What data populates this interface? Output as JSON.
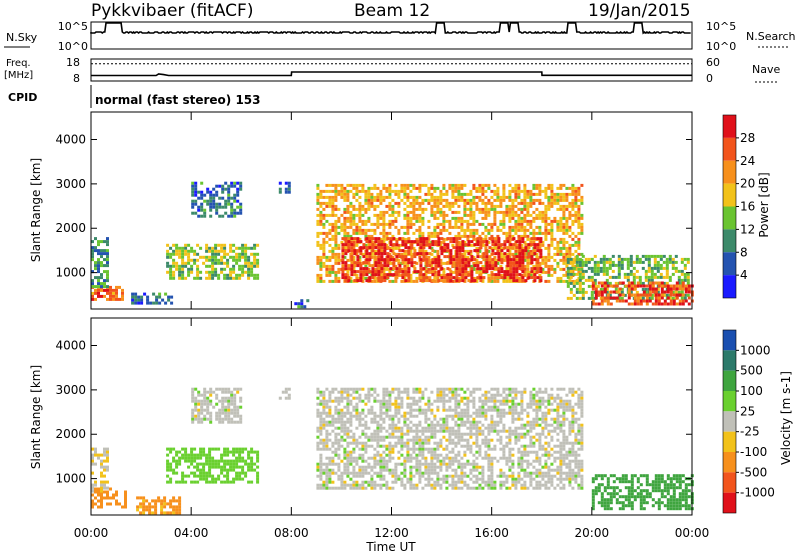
{
  "header": {
    "station": "Pykkvibaer (fitACF)",
    "beam": "Beam 12",
    "date": "19/Jan/2015"
  },
  "strip": {
    "nsky_label": "N.Sky",
    "nsearch_label": "N.Search",
    "freq_label": "Freq.",
    "freq_unit": "[MHz]",
    "nave_label": "Nave",
    "cpid_label": "CPID",
    "cpid_text": "normal (fast stereo) 153",
    "noise_ticks_left": [
      "10^5",
      "10^0"
    ],
    "noise_ticks_right": [
      "10^5",
      "10^0"
    ],
    "freq_ticks": [
      "18",
      "8"
    ],
    "nave_ticks": [
      "60",
      "0"
    ],
    "freq_series": {
      "times_h": [
        0,
        2.6,
        2.7,
        2.9,
        3.1,
        8.0,
        8.01,
        18.0,
        18.01,
        24
      ],
      "mhz": [
        10.5,
        10.5,
        11.2,
        10.9,
        10.5,
        10.5,
        12.1,
        12.1,
        10.6,
        10.6
      ]
    },
    "nave_level": 47,
    "noise_spikes_h": [
      0.75,
      1.05,
      13.95,
      16.5,
      16.9,
      19.2,
      21.85
    ]
  },
  "chart_data": [
    {
      "type": "heatmap",
      "title": "Beam 12",
      "xlabel": "Time UT",
      "ylabel": "Slant Range [km]",
      "x_ticks": [
        "00:00",
        "04:00",
        "08:00",
        "12:00",
        "16:00",
        "20:00",
        "00:00"
      ],
      "x_range_h": [
        0,
        24
      ],
      "y_ticks": [
        1000,
        2000,
        3000,
        4000
      ],
      "ylim": [
        180,
        4620
      ],
      "colorbar_label": "Power [dB]",
      "colorbar_ticks": [
        4,
        8,
        12,
        16,
        20,
        24,
        28
      ],
      "colorbar_range": [
        0,
        32
      ],
      "colors": [
        "#1a1aff",
        "#2453b0",
        "#3c8a6a",
        "#6ac431",
        "#f2c21a",
        "#f7901c",
        "#f2541c",
        "#e0101a"
      ],
      "regions": [
        {
          "t": [
            0.0,
            1.3
          ],
          "r": [
            400,
            700
          ],
          "v": 24
        },
        {
          "t": [
            0.0,
            0.6
          ],
          "r": [
            700,
            1800
          ],
          "v": 10
        },
        {
          "t": [
            1.6,
            3.2
          ],
          "r": [
            300,
            550
          ],
          "v": 8
        },
        {
          "t": [
            3.0,
            6.7
          ],
          "r": [
            900,
            1650
          ],
          "v": 15
        },
        {
          "t": [
            4.0,
            6.0
          ],
          "r": [
            2300,
            3050
          ],
          "v": 8
        },
        {
          "t": [
            7.5,
            7.9
          ],
          "r": [
            2800,
            3050
          ],
          "v": 6
        },
        {
          "t": [
            8.0,
            8.6
          ],
          "r": [
            200,
            400
          ],
          "v": 8
        },
        {
          "t": [
            9.0,
            19.6
          ],
          "r": [
            800,
            3000
          ],
          "v": 20
        },
        {
          "t": [
            10.0,
            18.0
          ],
          "r": [
            800,
            1800
          ],
          "v": 28
        },
        {
          "t": [
            19.0,
            23.8
          ],
          "r": [
            400,
            1400
          ],
          "v": 14
        },
        {
          "t": [
            20.0,
            24.0
          ],
          "r": [
            300,
            800
          ],
          "v": 26
        }
      ]
    },
    {
      "type": "heatmap",
      "xlabel": "Time UT",
      "ylabel": "Slant Range [km]",
      "x_ticks": [
        "00:00",
        "04:00",
        "08:00",
        "12:00",
        "16:00",
        "20:00",
        "00:00"
      ],
      "x_range_h": [
        0,
        24
      ],
      "y_ticks": [
        1000,
        2000,
        3000,
        4000
      ],
      "ylim": [
        180,
        4620
      ],
      "colorbar_label": "Velocity [m s-1]",
      "colorbar_ticks": [
        "1000",
        "500",
        "100",
        "25",
        "-25",
        "-100",
        "-500",
        "-1000"
      ],
      "colorbar_range": [
        -1000,
        1000
      ],
      "colors": [
        "#1a4fb0",
        "#2c7a6a",
        "#3fa53f",
        "#6ad02f",
        "#c0c0b8",
        "#f2c21a",
        "#f7901c",
        "#f2541c",
        "#e0101a"
      ],
      "regions": [
        {
          "t": [
            0.0,
            1.4
          ],
          "r": [
            350,
            800
          ],
          "v": -150
        },
        {
          "t": [
            0.0,
            0.6
          ],
          "r": [
            700,
            1700
          ],
          "v": -20
        },
        {
          "t": [
            1.8,
            3.5
          ],
          "r": [
            250,
            600
          ],
          "v": -120
        },
        {
          "t": [
            3.0,
            6.7
          ],
          "r": [
            900,
            1700
          ],
          "v": 60
        },
        {
          "t": [
            4.0,
            6.0
          ],
          "r": [
            2300,
            3050
          ],
          "v": 0
        },
        {
          "t": [
            7.5,
            7.9
          ],
          "r": [
            2800,
            3050
          ],
          "v": 0
        },
        {
          "t": [
            9.0,
            19.6
          ],
          "r": [
            800,
            3050
          ],
          "v": 0
        },
        {
          "t": [
            20.0,
            24.0
          ],
          "r": [
            350,
            1100
          ],
          "v": 180
        }
      ]
    }
  ]
}
